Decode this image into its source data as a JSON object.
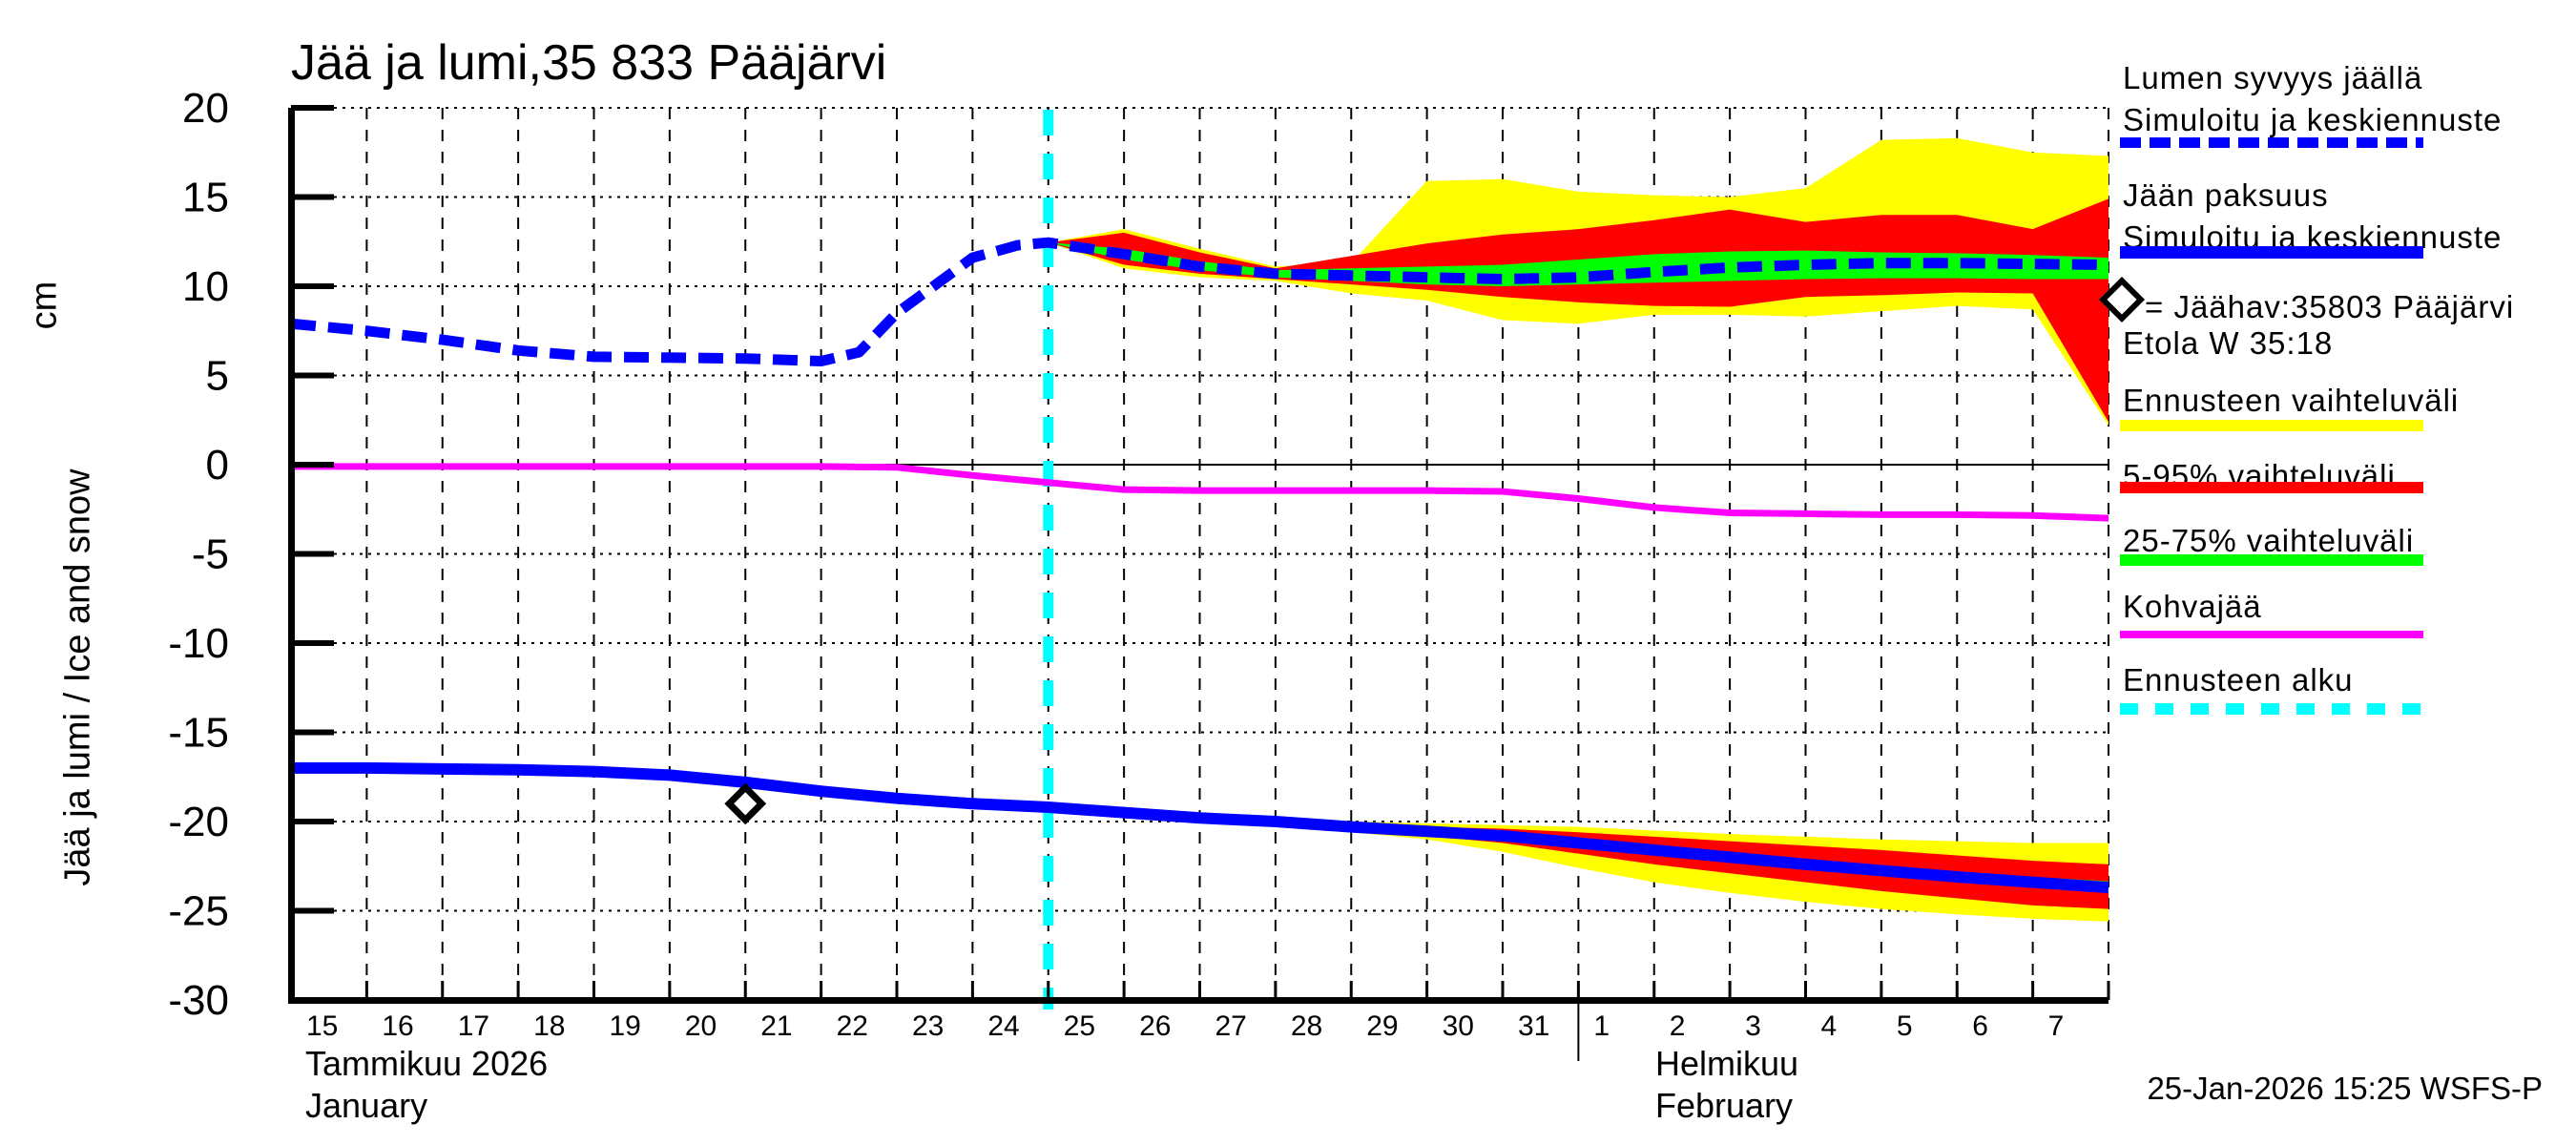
{
  "timestamp": "25-Jan-2026 15:25 WSFS-P",
  "y_axis": {
    "label": "Jää ja lumi / Ice and snow",
    "unit": "cm",
    "ticks": [
      20,
      15,
      10,
      5,
      0,
      -5,
      -10,
      -15,
      -20,
      -25,
      -30
    ]
  },
  "x_axis": {
    "day_labels": [
      "15",
      "16",
      "17",
      "18",
      "19",
      "20",
      "21",
      "22",
      "23",
      "24",
      "25",
      "26",
      "27",
      "28",
      "29",
      "30",
      "31",
      "1",
      "2",
      "3",
      "4",
      "5",
      "6",
      "7"
    ],
    "months": [
      {
        "fi": "Tammikuu 2026",
        "en": "January"
      },
      {
        "fi": "Helmikuu",
        "en": "February"
      }
    ]
  },
  "colors": {
    "blue": "#0000ff",
    "cyan": "#00ffff",
    "magenta": "#ff00ff",
    "yellow": "#ffff00",
    "red": "#ff0000",
    "green": "#00ff00",
    "black": "#000000"
  },
  "legend": {
    "items": [
      {
        "id": "snow-depth",
        "lines": [
          "Lumen syvyys jäällä",
          "Simuloitu ja keskiennuste"
        ],
        "swatch": "blue-dashed"
      },
      {
        "id": "ice-thickness",
        "lines": [
          "Jään paksuus",
          "Simuloitu ja keskiennuste"
        ],
        "swatch": "blue-solid"
      },
      {
        "id": "ice-observation",
        "lines": [
          "= Jäähav:35803 Pääjärvi",
          "Etola W 35:18"
        ],
        "marker": "diamond"
      },
      {
        "id": "forecast-range",
        "lines": [
          "Ennusteen vaihteluväli"
        ],
        "swatch": "yellow"
      },
      {
        "id": "range-5-95",
        "lines": [
          "5-95% vaihteluväli"
        ],
        "swatch": "red"
      },
      {
        "id": "range-25-75",
        "lines": [
          "25-75% vaihteluväli"
        ],
        "swatch": "green"
      },
      {
        "id": "kohvajaa",
        "lines": [
          "Kohvajää"
        ],
        "swatch": "magenta"
      },
      {
        "id": "forecast-start",
        "lines": [
          "Ennusteen alku"
        ],
        "swatch": "cyan-dashed"
      }
    ]
  },
  "chart_data": {
    "type": "line",
    "title": "Jää ja lumi,35 833 Pääjärvi",
    "station": "35 833 Pääjärvi",
    "ylabel": "Jää ja lumi / Ice and snow",
    "y_unit": "cm",
    "ylim": [
      -30,
      20
    ],
    "xlim_days_from_jan15": [
      0,
      24
    ],
    "x_description": "days since 2026-01-15; 0=Jan 15 ... 17=Feb 1 ... 24=Feb 8",
    "forecast_start_x": 10,
    "grid": true,
    "legend_position": "right",
    "series": {
      "snow_depth_simulated": {
        "x": [
          0,
          1,
          2,
          3,
          4,
          5,
          6,
          7,
          7.5,
          8,
          9,
          9.6,
          10
        ],
        "y": [
          7.9,
          7.5,
          7.0,
          6.4,
          6.05,
          6.0,
          5.95,
          5.8,
          6.3,
          8.5,
          11.6,
          12.3,
          12.45
        ]
      },
      "snow_depth_forecast_median": {
        "x": [
          10,
          11,
          12,
          13,
          14,
          15,
          16,
          17,
          18,
          19,
          20,
          21,
          22,
          23,
          24
        ],
        "y": [
          12.45,
          11.8,
          11.1,
          10.7,
          10.6,
          10.5,
          10.4,
          10.5,
          10.8,
          11.05,
          11.2,
          11.3,
          11.3,
          11.25,
          11.2
        ]
      },
      "snow_band_25_75": {
        "x": [
          10,
          11,
          12,
          13,
          14,
          15,
          16,
          17,
          18,
          19,
          20,
          21,
          22,
          23,
          24
        ],
        "top": [
          12.45,
          12.1,
          11.4,
          10.9,
          11.0,
          11.1,
          11.2,
          11.5,
          11.8,
          11.95,
          12.0,
          11.9,
          11.85,
          11.75,
          11.6
        ],
        "bottom": [
          12.45,
          11.5,
          10.9,
          10.5,
          10.3,
          10.1,
          10.0,
          10.1,
          10.2,
          10.3,
          10.4,
          10.45,
          10.45,
          10.4,
          10.4
        ]
      },
      "snow_band_5_95": {
        "x": [
          10,
          11,
          12,
          13,
          14,
          15,
          16,
          17,
          18,
          19,
          20,
          21,
          22,
          23,
          24
        ],
        "top": [
          12.45,
          13.0,
          11.9,
          11.0,
          11.7,
          12.4,
          12.9,
          13.2,
          13.7,
          14.3,
          13.6,
          14.0,
          14.0,
          13.2,
          14.9
        ],
        "bottom": [
          12.45,
          11.2,
          10.7,
          10.4,
          10.1,
          9.8,
          9.4,
          9.1,
          8.9,
          8.85,
          9.4,
          9.5,
          9.65,
          9.6,
          2.4
        ]
      },
      "snow_band_minmax": {
        "x": [
          10,
          11,
          12,
          13,
          14,
          15,
          16,
          17,
          18,
          19,
          20,
          21,
          22,
          23,
          24
        ],
        "top": [
          12.45,
          13.2,
          12.1,
          11.1,
          11.3,
          15.9,
          16.0,
          15.3,
          15.1,
          15.0,
          15.5,
          18.2,
          18.3,
          17.5,
          17.3
        ],
        "bottom": [
          12.45,
          11.0,
          10.5,
          10.3,
          9.6,
          9.2,
          8.1,
          7.9,
          8.4,
          8.4,
          8.3,
          8.6,
          8.9,
          8.7,
          2.2
        ]
      },
      "ice_thickness_simulated": {
        "x": [
          0,
          1,
          2,
          3,
          4,
          5,
          6,
          7,
          8,
          9,
          10
        ],
        "y": [
          -17.0,
          -17.0,
          -17.05,
          -17.1,
          -17.2,
          -17.4,
          -17.8,
          -18.3,
          -18.7,
          -19.0,
          -19.2
        ]
      },
      "ice_thickness_forecast_median": {
        "x": [
          10,
          11,
          12,
          13,
          14,
          15,
          16,
          17,
          18,
          19,
          20,
          21,
          22,
          23,
          24
        ],
        "y": [
          -19.2,
          -19.5,
          -19.8,
          -20.0,
          -20.3,
          -20.55,
          -20.8,
          -21.2,
          -21.6,
          -22.0,
          -22.4,
          -22.75,
          -23.1,
          -23.4,
          -23.7
        ]
      },
      "ice_band_25_75": {
        "x": [
          10,
          11,
          12,
          13,
          14,
          15,
          16,
          17,
          18,
          19,
          20,
          21,
          22,
          23,
          24
        ],
        "top": [
          -19.2,
          -19.45,
          -19.7,
          -19.9,
          -20.15,
          -20.4,
          -20.6,
          -21.0,
          -21.35,
          -21.75,
          -22.1,
          -22.45,
          -22.8,
          -23.1,
          -23.35
        ],
        "bottom": [
          -19.2,
          -19.55,
          -19.9,
          -20.1,
          -20.45,
          -20.7,
          -21.0,
          -21.4,
          -21.85,
          -22.25,
          -22.7,
          -23.05,
          -23.4,
          -23.7,
          -24.0
        ]
      },
      "ice_band_5_95": {
        "x": [
          10,
          11,
          12,
          13,
          14,
          15,
          16,
          17,
          18,
          19,
          20,
          21,
          22,
          23,
          24
        ],
        "top": [
          -19.2,
          -19.45,
          -19.65,
          -19.85,
          -20.1,
          -20.3,
          -20.4,
          -20.6,
          -20.85,
          -21.1,
          -21.35,
          -21.6,
          -21.9,
          -22.2,
          -22.4
        ],
        "bottom": [
          -19.2,
          -19.55,
          -19.95,
          -20.15,
          -20.5,
          -20.8,
          -21.2,
          -21.8,
          -22.4,
          -22.9,
          -23.4,
          -23.9,
          -24.3,
          -24.7,
          -24.9
        ]
      },
      "ice_band_minmax": {
        "x": [
          10,
          11,
          12,
          13,
          14,
          15,
          16,
          17,
          18,
          19,
          20,
          21,
          22,
          23,
          24
        ],
        "top": [
          -19.2,
          -19.4,
          -19.6,
          -19.8,
          -20.0,
          -20.1,
          -20.2,
          -20.3,
          -20.5,
          -20.7,
          -20.85,
          -21.0,
          -21.1,
          -21.2,
          -21.2
        ],
        "bottom": [
          -19.2,
          -19.6,
          -20.0,
          -20.3,
          -20.6,
          -21.0,
          -21.7,
          -22.6,
          -23.4,
          -24.0,
          -24.5,
          -24.9,
          -25.2,
          -25.45,
          -25.6
        ]
      },
      "kohvajaa": {
        "x": [
          0,
          1,
          2,
          3,
          4,
          5,
          6,
          7,
          8,
          9,
          10,
          11,
          12,
          13,
          14,
          15,
          16,
          17,
          18,
          19,
          20,
          21,
          22,
          23,
          24
        ],
        "y": [
          -0.1,
          -0.1,
          -0.1,
          -0.1,
          -0.1,
          -0.1,
          -0.1,
          -0.1,
          -0.15,
          -0.6,
          -1.0,
          -1.4,
          -1.45,
          -1.45,
          -1.45,
          -1.45,
          -1.5,
          -1.9,
          -2.4,
          -2.7,
          -2.75,
          -2.8,
          -2.8,
          -2.85,
          -3.0
        ]
      }
    },
    "observation": {
      "x": 6,
      "y": -19,
      "label": "Jäähav:35803 Pääjärvi Etola W 35:18"
    }
  }
}
